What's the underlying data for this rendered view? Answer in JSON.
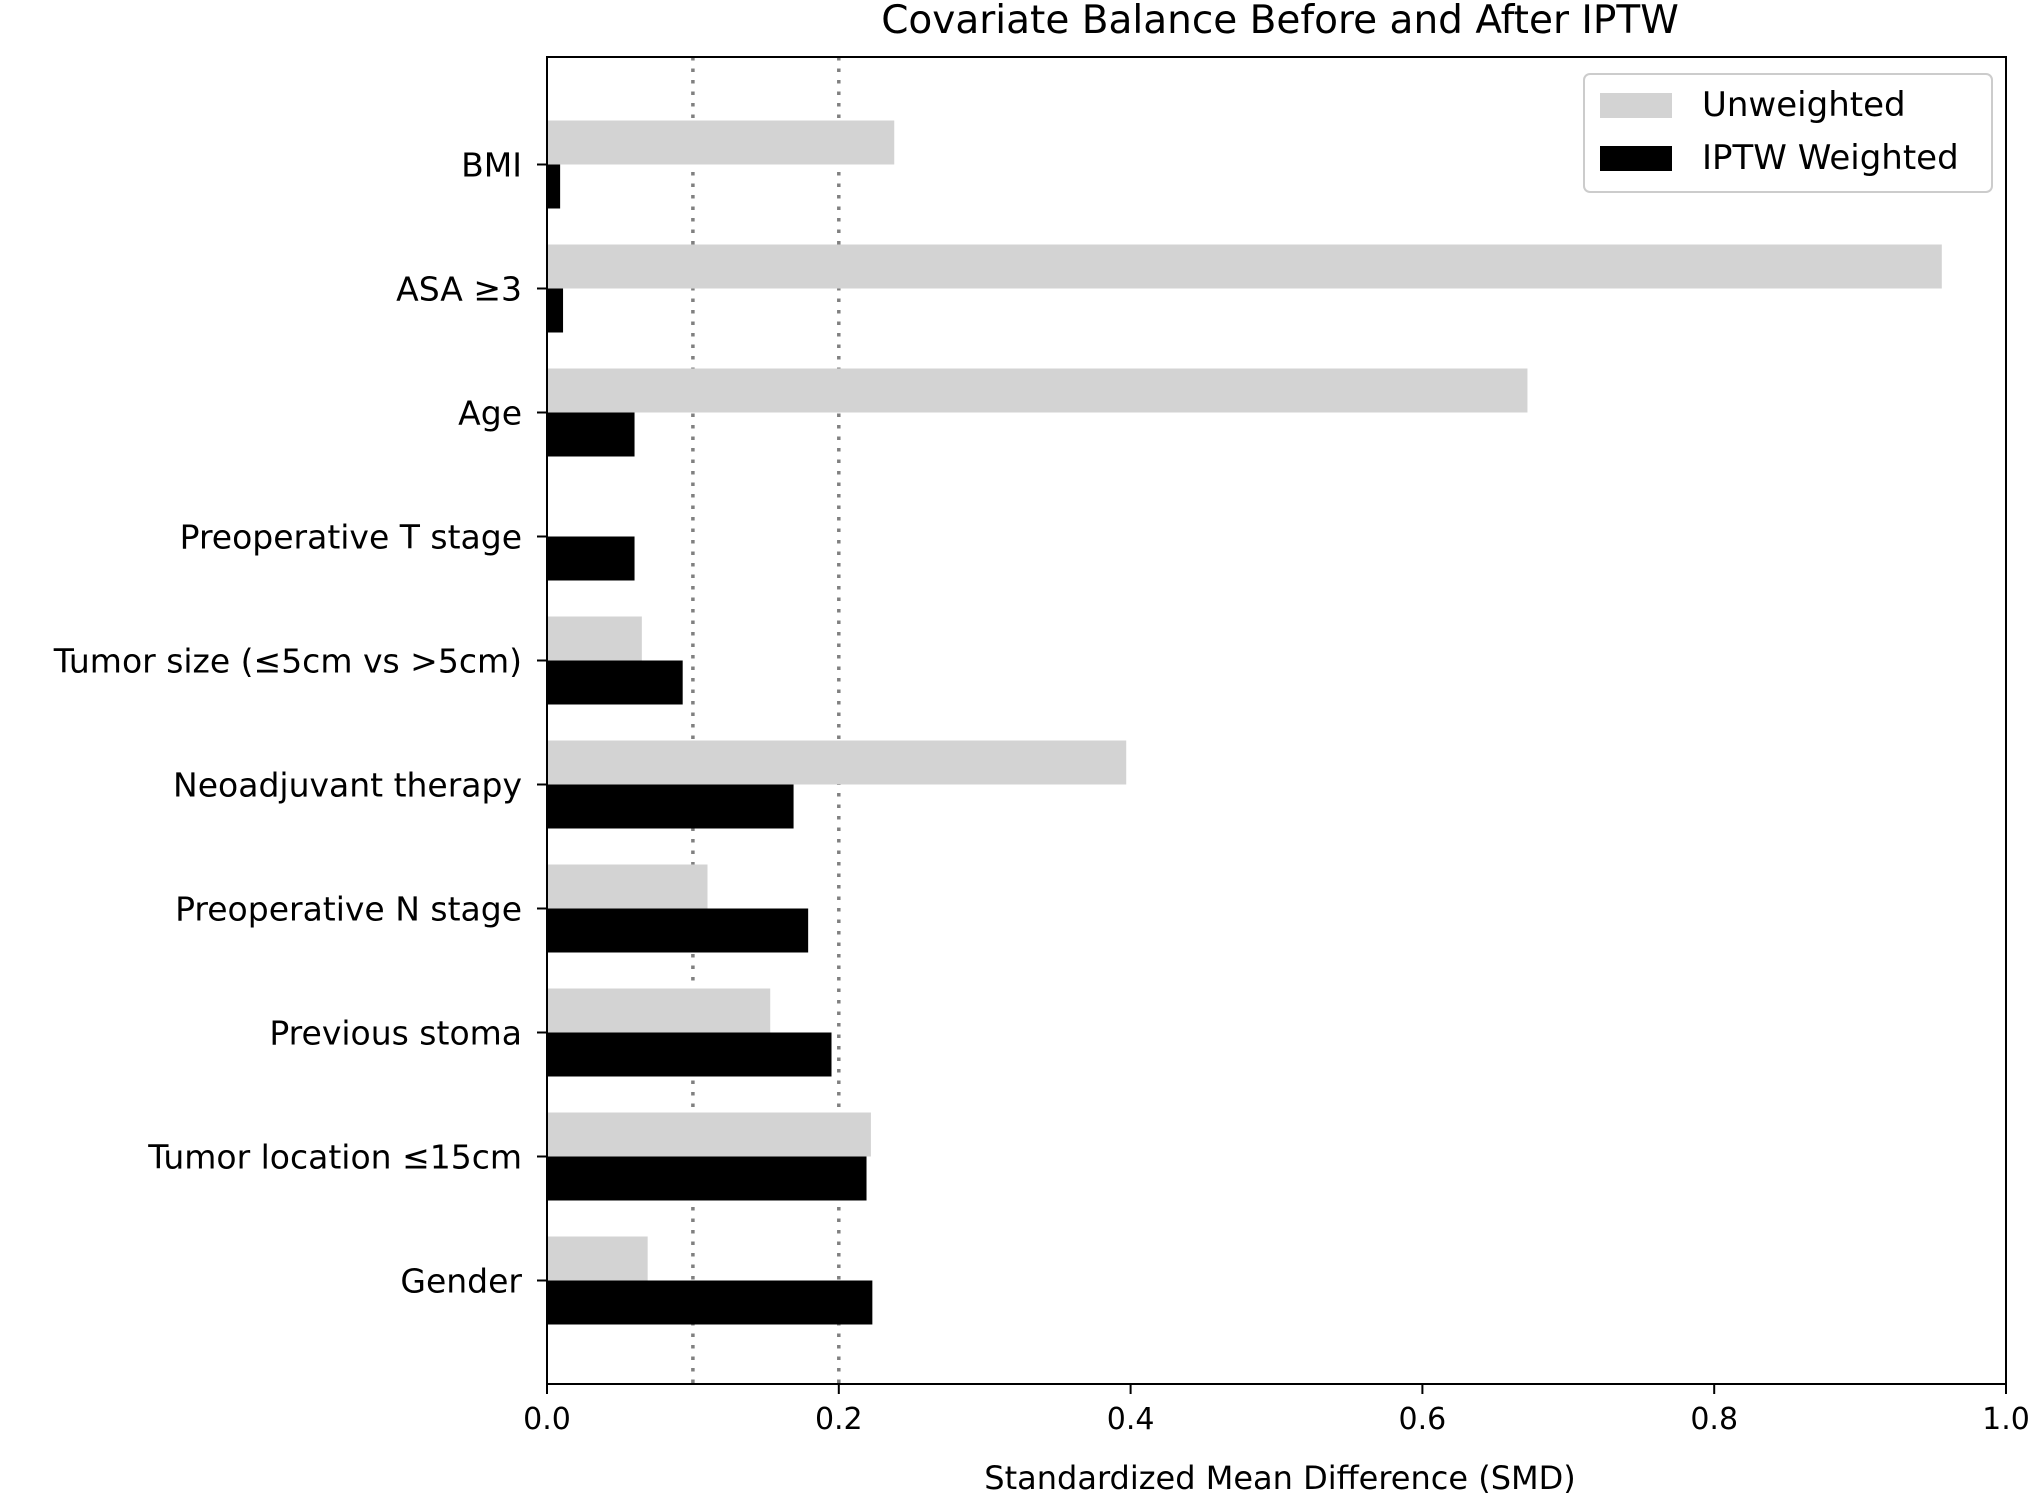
{
  "chart_data": {
    "type": "bar",
    "orientation": "horizontal",
    "title": "Covariate Balance Before and After IPTW",
    "xlabel": "Standardized Mean Difference (SMD)",
    "ylabel": "",
    "xlim": [
      0.0,
      1.0
    ],
    "xticks": [
      "0.0",
      "0.2",
      "0.4",
      "0.6",
      "0.8",
      "1.0"
    ],
    "categories": [
      "BMI",
      "ASA ≥3",
      "Age",
      "Preoperative T stage",
      "Tumor size (≤5cm vs >5cm)",
      "Neoadjuvant therapy",
      "Preoperative N stage",
      "Previous stoma",
      "Tumor location ≤15cm",
      "Gender"
    ],
    "series": [
      {
        "name": "Unweighted",
        "color": "#d3d3d3",
        "values": [
          0.238,
          0.956,
          0.672,
          0.0,
          0.065,
          0.397,
          0.11,
          0.153,
          0.222,
          0.069
        ]
      },
      {
        "name": "IPTW Weighted",
        "color": "#000000",
        "values": [
          0.009,
          0.011,
          0.06,
          0.06,
          0.093,
          0.169,
          0.179,
          0.195,
          0.219,
          0.223
        ]
      }
    ],
    "reference_lines": [
      0.1,
      0.2
    ],
    "reference_line_style": "dotted",
    "reference_line_color": "#808080",
    "legend_position": "top-right",
    "grid": false
  }
}
